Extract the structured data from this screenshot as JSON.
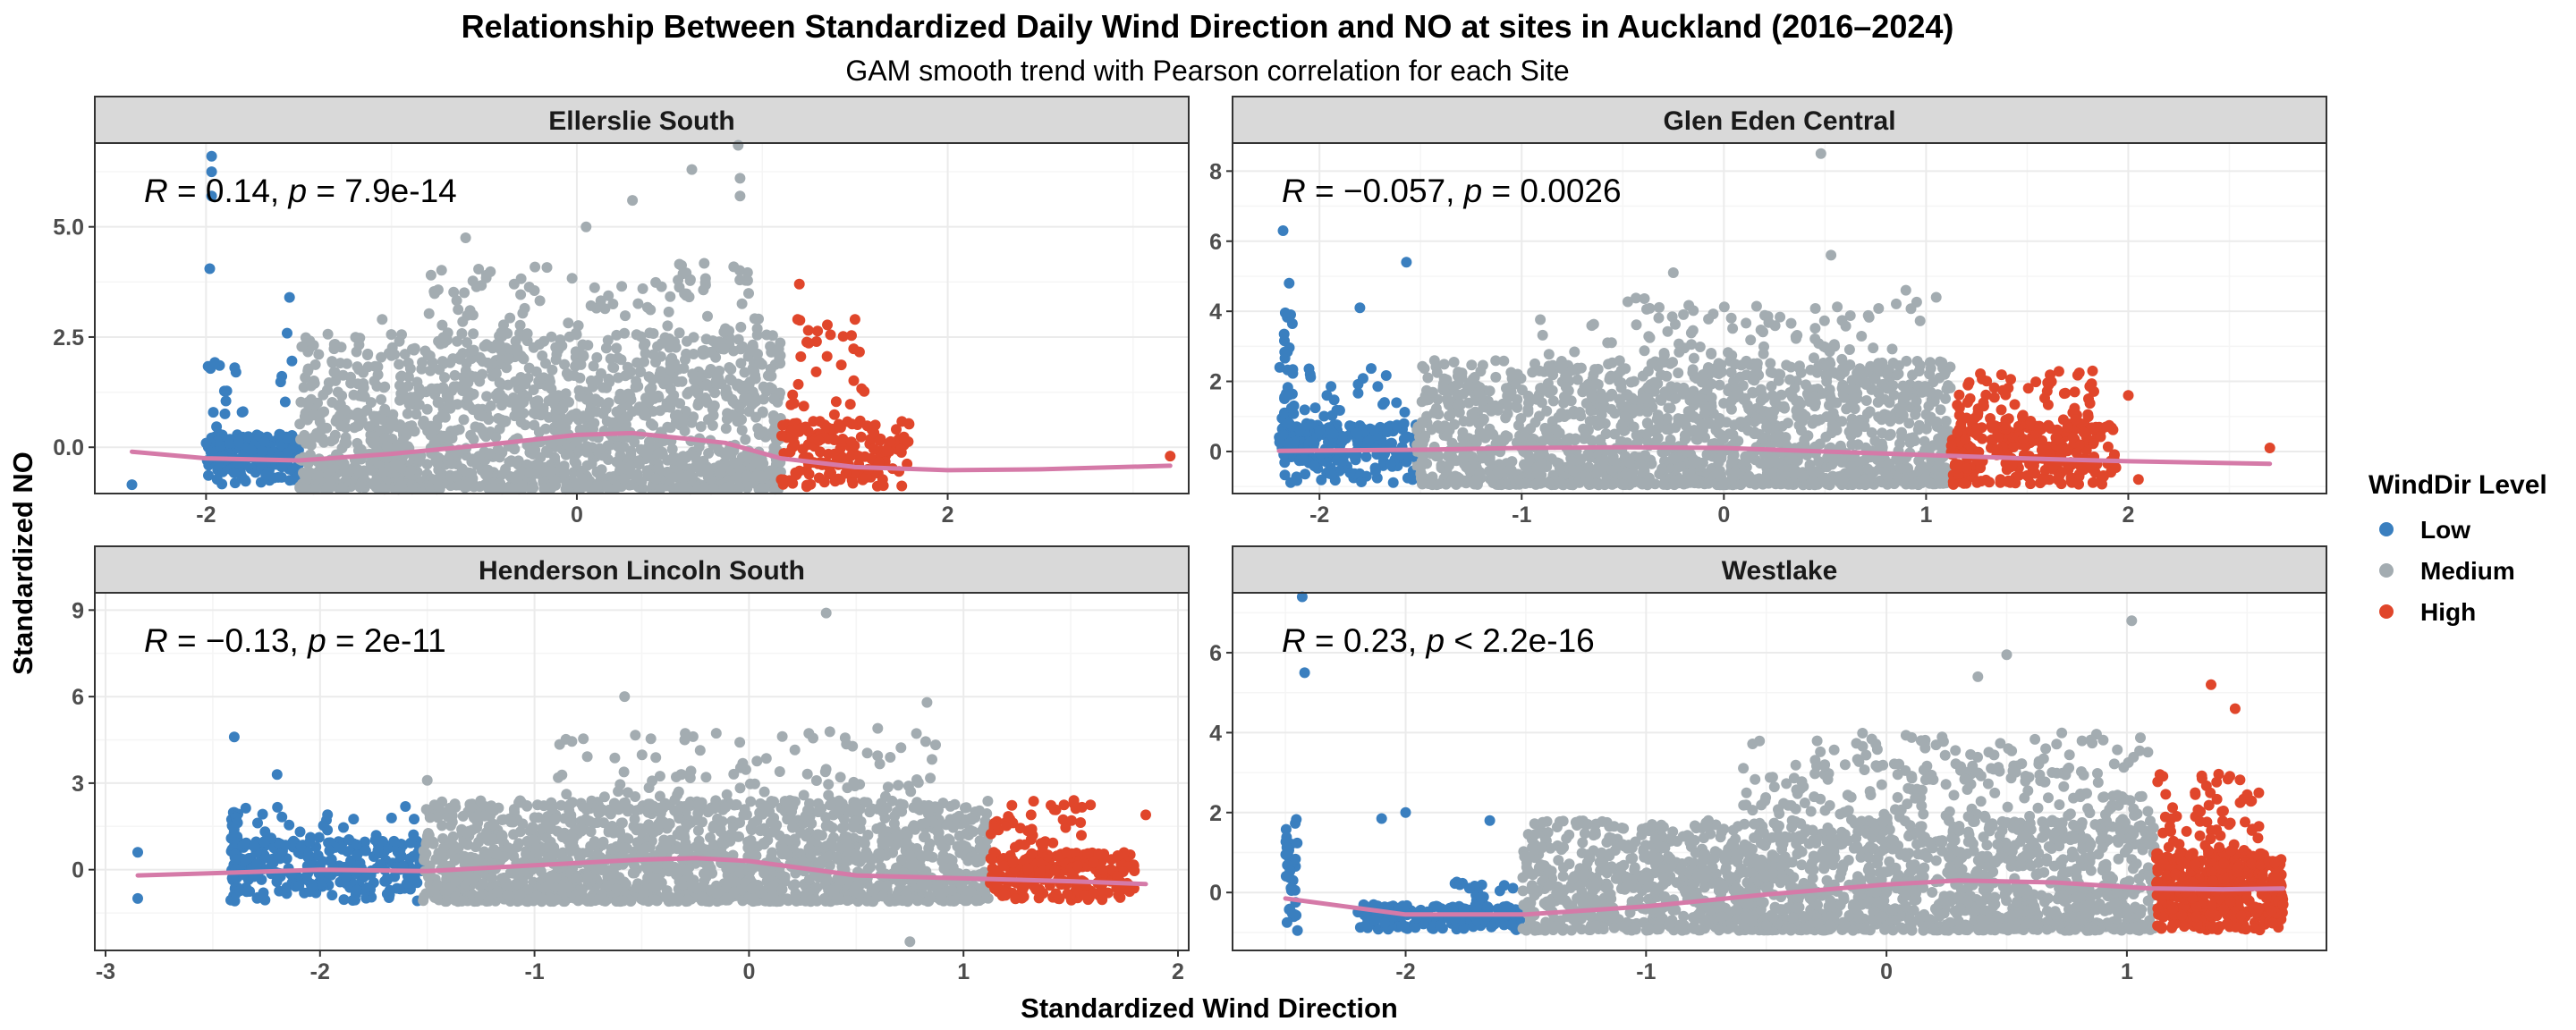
{
  "title": "Relationship Between Standardized Daily Wind Direction and NO at sites in Auckland (2016–2024)",
  "subtitle": "GAM smooth trend with Pearson correlation for each Site",
  "xlabel": "Standardized Wind Direction",
  "ylabel": "Standardized NO",
  "legend": {
    "title": "WindDir Level",
    "items": [
      {
        "label": "Low",
        "color": "#3a7fbf"
      },
      {
        "label": "Medium",
        "color": "#a3acb1"
      },
      {
        "label": "High",
        "color": "#e0462b"
      }
    ]
  },
  "colors": {
    "low": "#3a7fbf",
    "medium": "#a3acb1",
    "high": "#e0462b",
    "smooth": "#d57aa8",
    "strip_bg": "#d9d9d9",
    "grid_major": "#ebebeb",
    "grid_minor": "#f5f5f5",
    "border": "#333333"
  },
  "chart_data": [
    {
      "type": "scatter",
      "site": "Ellerslie South",
      "stat": {
        "r": "0.14",
        "op": "=",
        "p": "7.9e-14"
      },
      "xlim": [
        -2.6,
        3.3
      ],
      "ylim": [
        -1.05,
        6.9
      ],
      "xticks": [
        -2,
        0,
        2
      ],
      "xtick_labels": [
        "-2",
        "0",
        "2"
      ],
      "yticks": [
        0,
        2.5,
        5
      ],
      "ytick_labels": [
        "0.0",
        "2.5",
        "5.0"
      ],
      "breaks": [
        -1.5,
        1.1
      ],
      "x_range": [
        -2.4,
        3.2
      ],
      "smooth": {
        "x": [
          -2.4,
          -2.0,
          -1.5,
          -1.0,
          -0.5,
          0.0,
          0.3,
          0.8,
          1.1,
          1.5,
          2.0,
          2.5,
          3.2
        ],
        "y": [
          -0.1,
          -0.25,
          -0.3,
          -0.15,
          0.05,
          0.28,
          0.32,
          0.1,
          -0.25,
          -0.45,
          -0.52,
          -0.5,
          -0.42
        ]
      },
      "highlight": [
        {
          "x": -1.97,
          "y": 6.6
        },
        {
          "x": -1.97,
          "y": 6.25
        },
        {
          "x": -1.97,
          "y": 5.7
        },
        {
          "x": -1.98,
          "y": 4.05
        },
        {
          "x": 0.87,
          "y": 6.85
        },
        {
          "x": 0.62,
          "y": 6.3
        },
        {
          "x": 0.88,
          "y": 6.1
        },
        {
          "x": 0.88,
          "y": 5.7
        },
        {
          "x": 0.3,
          "y": 5.6
        },
        {
          "x": 0.05,
          "y": 5.0
        },
        {
          "x": -0.6,
          "y": 4.75
        },
        {
          "x": -1.55,
          "y": 3.4
        },
        {
          "x": -1.05,
          "y": 2.9
        },
        {
          "x": 1.2,
          "y": 3.7
        },
        {
          "x": 1.5,
          "y": 2.9
        },
        {
          "x": 3.2,
          "y": -0.2
        },
        {
          "x": 1.57,
          "y": -0.5
        },
        {
          "x": -2.4,
          "y": -0.85
        }
      ],
      "clusters": [
        {
          "x": [
            -2.0,
            -1.5
          ],
          "y": [
            -0.85,
            0.3
          ],
          "n": 180,
          "level": "low",
          "skew": 0.6
        },
        {
          "x": [
            -2.0,
            -1.8
          ],
          "y": [
            0.0,
            2.5
          ],
          "n": 14,
          "level": "low",
          "skew": 1.2
        },
        {
          "x": [
            -1.6,
            -1.4
          ],
          "y": [
            1.0,
            2.6
          ],
          "n": 8,
          "level": "low",
          "skew": 1.0
        },
        {
          "x": [
            -1.5,
            1.1
          ],
          "y": [
            -0.95,
            2.6
          ],
          "n": 1500,
          "level": "medium",
          "skew": 1.8
        },
        {
          "x": [
            -0.8,
            1.0
          ],
          "y": [
            1.0,
            4.2
          ],
          "n": 220,
          "level": "medium",
          "skew": 1.3
        },
        {
          "x": [
            1.1,
            1.8
          ],
          "y": [
            -0.9,
            0.6
          ],
          "n": 170,
          "level": "high",
          "skew": 0.9
        },
        {
          "x": [
            1.15,
            1.55
          ],
          "y": [
            0.6,
            3.0
          ],
          "n": 28,
          "level": "high",
          "skew": 1.2
        }
      ]
    },
    {
      "type": "scatter",
      "site": "Glen Eden Central",
      "stat": {
        "r": "−0.057",
        "op": "=",
        "p": "0.0026"
      },
      "xlim": [
        -2.43,
        2.98
      ],
      "ylim": [
        -1.2,
        8.8
      ],
      "xticks": [
        -2,
        -1,
        0,
        1,
        2
      ],
      "xtick_labels": [
        "-2",
        "-1",
        "0",
        "1",
        "2"
      ],
      "yticks": [
        0,
        2,
        4,
        6,
        8
      ],
      "ytick_labels": [
        "0",
        "2",
        "4",
        "6",
        "8"
      ],
      "breaks": [
        -1.52,
        1.12
      ],
      "x_range": [
        -2.2,
        2.7
      ],
      "smooth": {
        "x": [
          -2.2,
          -1.5,
          -1.0,
          -0.5,
          0.0,
          0.5,
          1.0,
          1.5,
          2.0,
          2.7
        ],
        "y": [
          0.02,
          0.05,
          0.1,
          0.12,
          0.1,
          0.0,
          -0.1,
          -0.2,
          -0.28,
          -0.35
        ]
      },
      "highlight": [
        {
          "x": 0.48,
          "y": 8.5
        },
        {
          "x": -2.18,
          "y": 6.3
        },
        {
          "x": 0.53,
          "y": 5.6
        },
        {
          "x": -1.57,
          "y": 5.4
        },
        {
          "x": -0.25,
          "y": 5.1
        },
        {
          "x": 0.9,
          "y": 4.6
        },
        {
          "x": 1.05,
          "y": 4.4
        },
        {
          "x": -1.8,
          "y": 4.1
        },
        {
          "x": -2.15,
          "y": 4.8
        },
        {
          "x": 2.7,
          "y": 0.1
        },
        {
          "x": 2.05,
          "y": -0.8
        },
        {
          "x": 2.0,
          "y": 1.6
        }
      ],
      "clusters": [
        {
          "x": [
            -2.2,
            -1.5
          ],
          "y": [
            -0.95,
            0.8
          ],
          "n": 220,
          "level": "low",
          "skew": 0.8
        },
        {
          "x": [
            -2.2,
            -2.12
          ],
          "y": [
            0.5,
            4.0
          ],
          "n": 30,
          "level": "low",
          "skew": 1.4
        },
        {
          "x": [
            -2.1,
            -1.5
          ],
          "y": [
            0.5,
            2.4
          ],
          "n": 30,
          "level": "low",
          "skew": 1.3
        },
        {
          "x": [
            -1.5,
            1.12
          ],
          "y": [
            -0.95,
            2.6
          ],
          "n": 1600,
          "level": "medium",
          "skew": 1.8
        },
        {
          "x": [
            -1.0,
            1.0
          ],
          "y": [
            1.5,
            4.4
          ],
          "n": 160,
          "level": "medium",
          "skew": 1.3
        },
        {
          "x": [
            1.12,
            1.95
          ],
          "y": [
            -0.95,
            0.8
          ],
          "n": 260,
          "level": "high",
          "skew": 0.9
        },
        {
          "x": [
            1.12,
            1.85
          ],
          "y": [
            0.5,
            2.3
          ],
          "n": 70,
          "level": "high",
          "skew": 1.1
        }
      ]
    },
    {
      "type": "scatter",
      "site": "Henderson Lincoln South",
      "stat": {
        "r": "−0.13",
        "op": "=",
        "p": "2e-11"
      },
      "xlim": [
        -3.05,
        2.05
      ],
      "ylim": [
        -2.8,
        9.6
      ],
      "xticks": [
        -3,
        -2,
        -1,
        0,
        1,
        2
      ],
      "xtick_labels": [
        "-3",
        "-2",
        "-1",
        "0",
        "1",
        "2"
      ],
      "yticks": [
        0,
        3,
        6,
        9
      ],
      "ytick_labels": [
        "0",
        "3",
        "6",
        "9"
      ],
      "breaks": [
        -1.52,
        1.12
      ],
      "x_range": [
        -2.85,
        1.85
      ],
      "smooth": {
        "x": [
          -2.85,
          -2.4,
          -2.0,
          -1.5,
          -1.0,
          -0.5,
          -0.25,
          0.0,
          0.5,
          1.0,
          1.5,
          1.85
        ],
        "y": [
          -0.2,
          -0.1,
          0.0,
          -0.05,
          0.15,
          0.35,
          0.4,
          0.3,
          -0.2,
          -0.3,
          -0.4,
          -0.5
        ]
      },
      "highlight": [
        {
          "x": 0.36,
          "y": 8.9
        },
        {
          "x": -0.58,
          "y": 6.0
        },
        {
          "x": 0.83,
          "y": 5.8
        },
        {
          "x": -2.4,
          "y": 4.6
        },
        {
          "x": -0.3,
          "y": 4.5
        },
        {
          "x": -2.2,
          "y": 3.3
        },
        {
          "x": -1.5,
          "y": 3.1
        },
        {
          "x": 0.75,
          "y": -2.5
        },
        {
          "x": -2.85,
          "y": 0.6
        },
        {
          "x": -2.85,
          "y": -1.0
        },
        {
          "x": 1.85,
          "y": 1.9
        },
        {
          "x": 0.6,
          "y": 4.9
        }
      ],
      "clusters": [
        {
          "x": [
            -2.42,
            -2.38
          ],
          "y": [
            -1.1,
            2.1
          ],
          "n": 40,
          "level": "low",
          "skew": 1.0
        },
        {
          "x": [
            -2.4,
            -1.52
          ],
          "y": [
            -1.1,
            1.0
          ],
          "n": 260,
          "level": "low",
          "skew": 0.9
        },
        {
          "x": [
            -2.35,
            -1.55
          ],
          "y": [
            0.8,
            2.2
          ],
          "n": 35,
          "level": "low",
          "skew": 1.2
        },
        {
          "x": [
            -1.52,
            1.12
          ],
          "y": [
            -1.1,
            2.4
          ],
          "n": 1700,
          "level": "medium",
          "skew": 1.6
        },
        {
          "x": [
            -0.9,
            0.9
          ],
          "y": [
            2.0,
            4.8
          ],
          "n": 130,
          "level": "medium",
          "skew": 1.5
        },
        {
          "x": [
            1.12,
            1.8
          ],
          "y": [
            -1.1,
            0.6
          ],
          "n": 220,
          "level": "high",
          "skew": 0.9
        },
        {
          "x": [
            1.12,
            1.6
          ],
          "y": [
            0.5,
            2.4
          ],
          "n": 45,
          "level": "high",
          "skew": 1.0
        }
      ]
    },
    {
      "type": "scatter",
      "site": "Westlake",
      "stat": {
        "r": "0.23",
        "op": "<",
        "p": "2.2e-16"
      },
      "xlim": [
        -2.72,
        1.83
      ],
      "ylim": [
        -1.45,
        7.5
      ],
      "xticks": [
        -2,
        -1,
        0,
        1
      ],
      "xtick_labels": [
        "-2",
        "-1",
        "0",
        "1"
      ],
      "yticks": [
        0,
        2,
        4,
        6
      ],
      "ytick_labels": [
        "0",
        "2",
        "4",
        "6"
      ],
      "breaks": [
        -1.52,
        1.12
      ],
      "x_range": [
        -2.5,
        1.65
      ],
      "smooth": {
        "x": [
          -2.5,
          -2.0,
          -1.5,
          -1.0,
          -0.5,
          0.0,
          0.3,
          0.7,
          1.1,
          1.4,
          1.65
        ],
        "y": [
          -0.15,
          -0.55,
          -0.55,
          -0.35,
          -0.05,
          0.2,
          0.3,
          0.25,
          0.1,
          0.08,
          0.1
        ]
      },
      "highlight": [
        {
          "x": -2.43,
          "y": 7.4
        },
        {
          "x": -2.42,
          "y": 5.5
        },
        {
          "x": 1.02,
          "y": 6.8
        },
        {
          "x": 0.5,
          "y": 5.95
        },
        {
          "x": 0.38,
          "y": 5.4
        },
        {
          "x": 1.35,
          "y": 5.2
        },
        {
          "x": 1.45,
          "y": 4.6
        },
        {
          "x": -2.0,
          "y": 2.0
        },
        {
          "x": -2.1,
          "y": 1.85
        },
        {
          "x": -1.65,
          "y": 1.8
        },
        {
          "x": -2.45,
          "y": -0.95
        },
        {
          "x": 1.65,
          "y": -0.3
        }
      ],
      "clusters": [
        {
          "x": [
            -2.5,
            -2.45
          ],
          "y": [
            -0.95,
            1.9
          ],
          "n": 30,
          "level": "low",
          "skew": 1.0
        },
        {
          "x": [
            -2.2,
            -1.52
          ],
          "y": [
            -0.95,
            -0.3
          ],
          "n": 200,
          "level": "low",
          "skew": 0.8
        },
        {
          "x": [
            -1.8,
            -1.55
          ],
          "y": [
            -0.3,
            0.3
          ],
          "n": 15,
          "level": "low",
          "skew": 1.0
        },
        {
          "x": [
            -1.52,
            1.12
          ],
          "y": [
            -0.95,
            1.8
          ],
          "n": 1700,
          "level": "medium",
          "skew": 1.5
        },
        {
          "x": [
            -0.6,
            1.1
          ],
          "y": [
            1.2,
            4.0
          ],
          "n": 300,
          "level": "medium",
          "skew": 1.2
        },
        {
          "x": [
            1.12,
            1.65
          ],
          "y": [
            -0.95,
            1.0
          ],
          "n": 450,
          "level": "high",
          "skew": 0.9
        },
        {
          "x": [
            1.12,
            1.55
          ],
          "y": [
            1.0,
            3.0
          ],
          "n": 60,
          "level": "high",
          "skew": 1.1
        }
      ]
    }
  ]
}
